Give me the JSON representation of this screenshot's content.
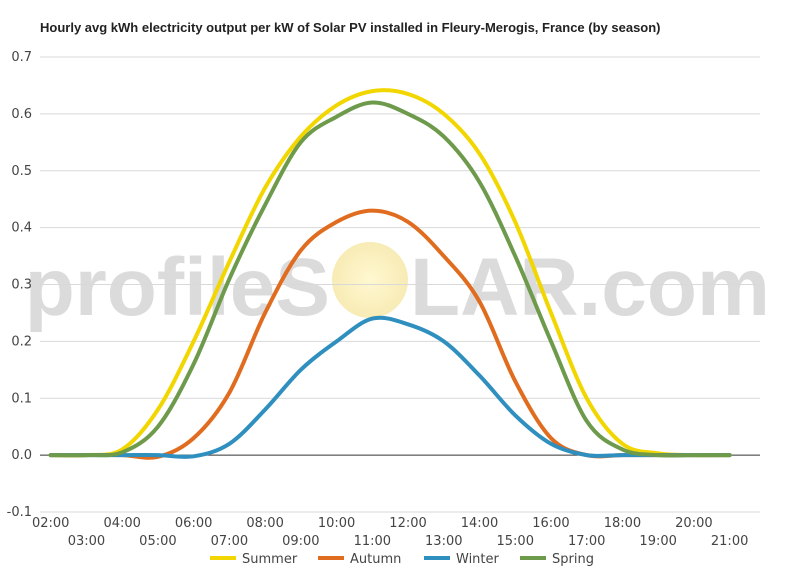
{
  "chart_data": {
    "type": "line",
    "title": "Hourly avg kWh electricity output per kW of Solar PV installed in Fleury-Merogis, France (by season)",
    "xlabel": "",
    "ylabel": "",
    "ylim": [
      -0.1,
      0.7
    ],
    "yticks": [
      "-0.1",
      "0.0",
      "0.1",
      "0.2",
      "0.3",
      "0.4",
      "0.5",
      "0.6",
      "0.7"
    ],
    "grid": true,
    "legend_position": "bottom",
    "x": [
      2,
      3,
      4,
      5,
      6,
      7,
      8,
      9,
      10,
      11,
      12,
      13,
      14,
      15,
      16,
      17,
      18,
      19,
      20,
      21
    ],
    "x_tick_labels": [
      "02:00",
      "03:00",
      "04:00",
      "05:00",
      "06:00",
      "07:00",
      "08:00",
      "09:00",
      "10:00",
      "11:00",
      "12:00",
      "13:00",
      "14:00",
      "15:00",
      "16:00",
      "17:00",
      "18:00",
      "19:00",
      "20:00",
      "21:00"
    ],
    "series": [
      {
        "name": "Summer",
        "color": "#f2d600",
        "values": [
          0,
          0,
          0.01,
          0.08,
          0.2,
          0.34,
          0.47,
          0.56,
          0.615,
          0.64,
          0.635,
          0.6,
          0.53,
          0.41,
          0.25,
          0.1,
          0.02,
          0.003,
          0,
          0
        ]
      },
      {
        "name": "Autumn",
        "color": "#e06c1f",
        "values": [
          0,
          0,
          0,
          -0.003,
          0.03,
          0.11,
          0.25,
          0.36,
          0.41,
          0.43,
          0.41,
          0.35,
          0.27,
          0.13,
          0.03,
          0,
          0,
          0,
          0,
          0
        ]
      },
      {
        "name": "Winter",
        "color": "#2f8fbf",
        "values": [
          0,
          0,
          0,
          0,
          -0.002,
          0.02,
          0.08,
          0.15,
          0.2,
          0.24,
          0.23,
          0.2,
          0.14,
          0.07,
          0.02,
          0,
          0,
          0,
          0,
          0
        ]
      },
      {
        "name": "Spring",
        "color": "#6e9a4c",
        "values": [
          0,
          0,
          0.005,
          0.05,
          0.16,
          0.31,
          0.44,
          0.55,
          0.595,
          0.62,
          0.6,
          0.56,
          0.48,
          0.35,
          0.2,
          0.06,
          0.01,
          0,
          0,
          0
        ]
      }
    ]
  },
  "watermark": {
    "left": "profileS",
    "right": "LAR.com"
  }
}
